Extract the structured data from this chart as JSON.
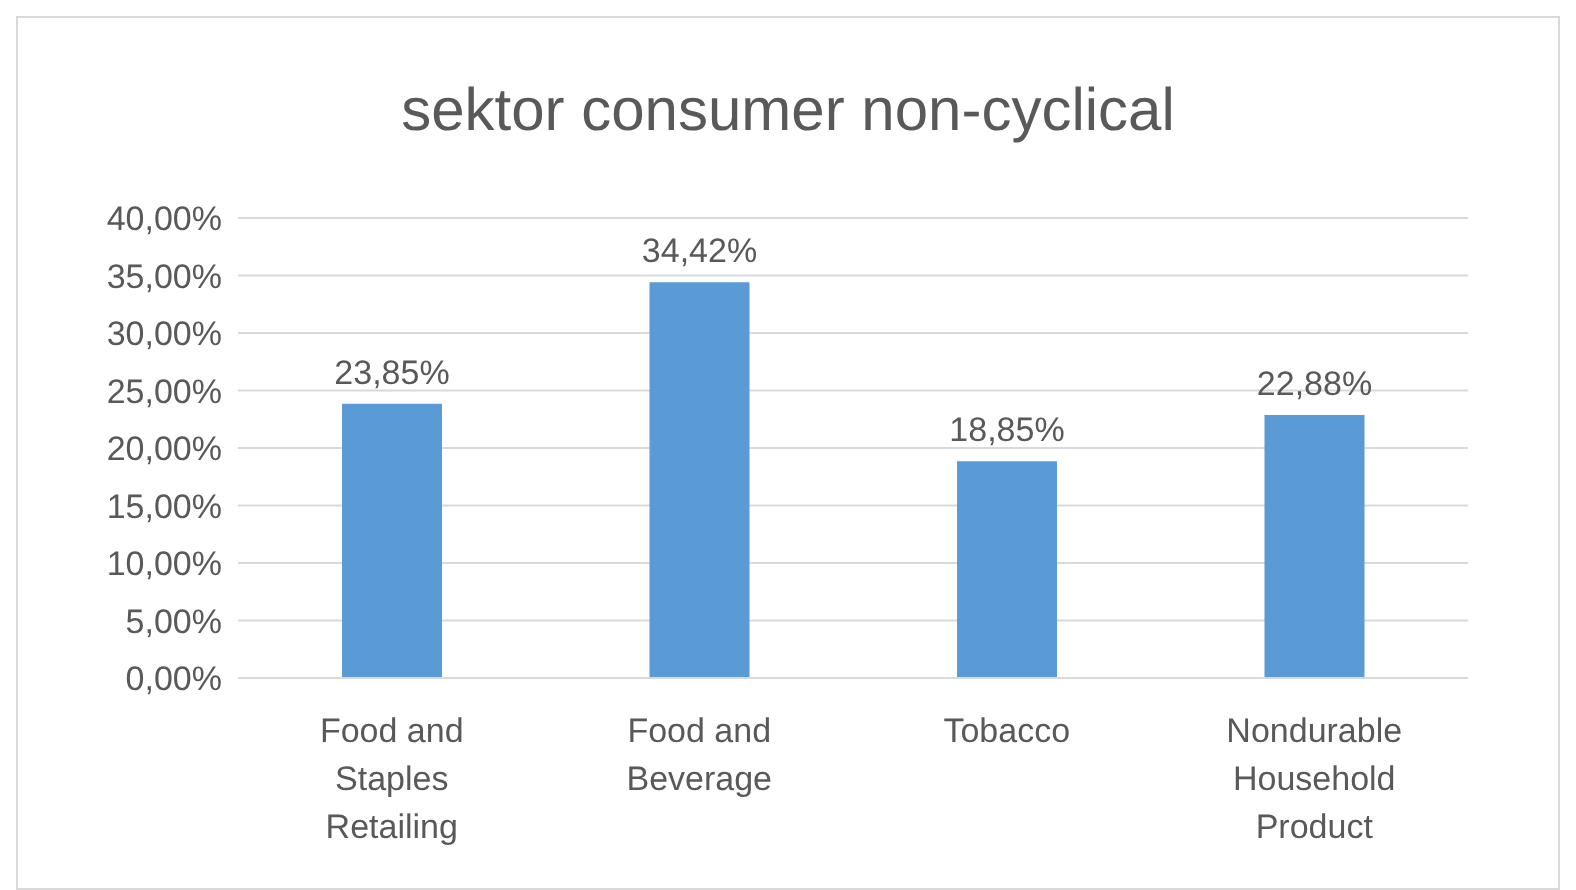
{
  "chart_data": {
    "type": "bar",
    "title": "sektor consumer non-cyclical",
    "categories": [
      "Food and Staples Retailing",
      "Food and Beverage",
      "Tobacco",
      "Nondurable Household Product"
    ],
    "values": [
      23.85,
      34.42,
      18.85,
      22.88
    ],
    "value_labels": [
      "23,85%",
      "34,42%",
      "18,85%",
      "22,88%"
    ],
    "color": "#5b9bd5",
    "ylim": [
      0,
      40
    ],
    "yticks": [
      {
        "value": 0,
        "label": "0,00%"
      },
      {
        "value": 5,
        "label": "5,00%"
      },
      {
        "value": 10,
        "label": "10,00%"
      },
      {
        "value": 15,
        "label": "15,00%"
      },
      {
        "value": 20,
        "label": "20,00%"
      },
      {
        "value": 25,
        "label": "25,00%"
      },
      {
        "value": 30,
        "label": "30,00%"
      },
      {
        "value": 35,
        "label": "35,00%"
      },
      {
        "value": 40,
        "label": "40,00%"
      }
    ],
    "grid": "y",
    "legend": false
  }
}
